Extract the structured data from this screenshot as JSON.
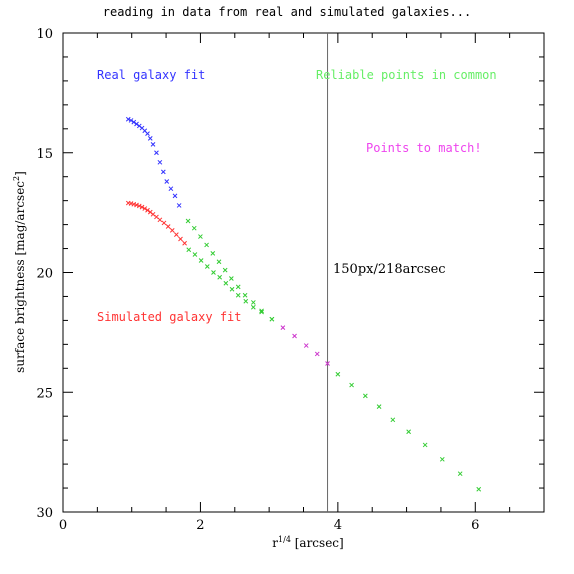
{
  "chart_data": {
    "type": "scatter",
    "title": "reading in data from real and simulated galaxies...",
    "xlabel": "r1/4 [arcsec]",
    "ylabel": "surface brightness [mag/arcsec2]",
    "xlim": [
      0,
      7
    ],
    "ylim": [
      10,
      30
    ],
    "y_inverted": true,
    "grid": false,
    "x_ticks": [
      0,
      2,
      4,
      6
    ],
    "x_tick_labels": [
      "0",
      "2",
      "4",
      "6"
    ],
    "y_ticks": [
      10,
      15,
      20,
      25,
      30
    ],
    "y_tick_labels": [
      "10",
      "15",
      "20",
      "25",
      "30"
    ],
    "vline_x": 3.85,
    "annotations": [
      {
        "text": "Real galaxy fit",
        "color": "#3333ff"
      },
      {
        "text": "Reliable points in common",
        "color": "#66ee66"
      },
      {
        "text": "Points to match!",
        "color": "#ee44ee"
      },
      {
        "text": "150px/218arcsec",
        "color": "#000000"
      },
      {
        "text": "Simulated galaxy fit",
        "color": "#ff3333"
      }
    ],
    "series": [
      {
        "color": "#3333ff",
        "x": [
          0.95,
          0.99,
          1.03,
          1.07,
          1.11,
          1.15,
          1.19,
          1.23,
          1.27,
          1.31,
          1.36,
          1.41,
          1.46,
          1.51,
          1.57,
          1.63,
          1.69
        ],
        "y": [
          13.6,
          13.65,
          13.72,
          13.8,
          13.88,
          13.97,
          14.08,
          14.2,
          14.4,
          14.65,
          15.0,
          15.4,
          15.8,
          16.2,
          16.5,
          16.8,
          17.2
        ]
      },
      {
        "color": "#ff3333",
        "x": [
          0.95,
          0.99,
          1.03,
          1.07,
          1.11,
          1.15,
          1.19,
          1.23,
          1.27,
          1.31,
          1.36,
          1.41,
          1.47,
          1.53,
          1.59,
          1.65,
          1.71,
          1.77
        ],
        "y": [
          17.1,
          17.12,
          17.15,
          17.18,
          17.22,
          17.27,
          17.33,
          17.4,
          17.48,
          17.57,
          17.68,
          17.8,
          17.93,
          18.08,
          18.24,
          18.42,
          18.6,
          18.78
        ]
      },
      {
        "color": "#33cc33",
        "x": [
          1.82,
          1.91,
          2.0,
          2.09,
          2.18,
          2.27,
          2.36,
          2.45,
          2.55,
          2.65,
          2.77,
          2.89,
          3.04
        ],
        "y": [
          17.85,
          18.15,
          18.5,
          18.85,
          19.2,
          19.55,
          19.9,
          20.25,
          20.6,
          20.95,
          21.25,
          21.6,
          21.95
        ]
      },
      {
        "color": "#33cc33",
        "x": [
          1.83,
          1.92,
          2.01,
          2.1,
          2.19,
          2.28,
          2.37,
          2.46,
          2.55,
          2.66,
          2.77,
          2.89,
          3.04
        ],
        "y": [
          19.05,
          19.25,
          19.5,
          19.75,
          20.0,
          20.2,
          20.45,
          20.7,
          20.95,
          21.2,
          21.45,
          21.65,
          21.95
        ]
      },
      {
        "color": "#cc33cc",
        "x": [
          3.2,
          3.37,
          3.54,
          3.7,
          3.85
        ],
        "y": [
          22.3,
          22.65,
          23.05,
          23.4,
          23.8
        ]
      },
      {
        "color": "#33cc33",
        "x": [
          4.0,
          4.2,
          4.4,
          4.6,
          4.8,
          5.03,
          5.27,
          5.52,
          5.78,
          6.05
        ],
        "y": [
          24.25,
          24.7,
          25.15,
          25.6,
          26.15,
          26.65,
          27.2,
          27.8,
          28.4,
          29.05
        ]
      }
    ]
  }
}
